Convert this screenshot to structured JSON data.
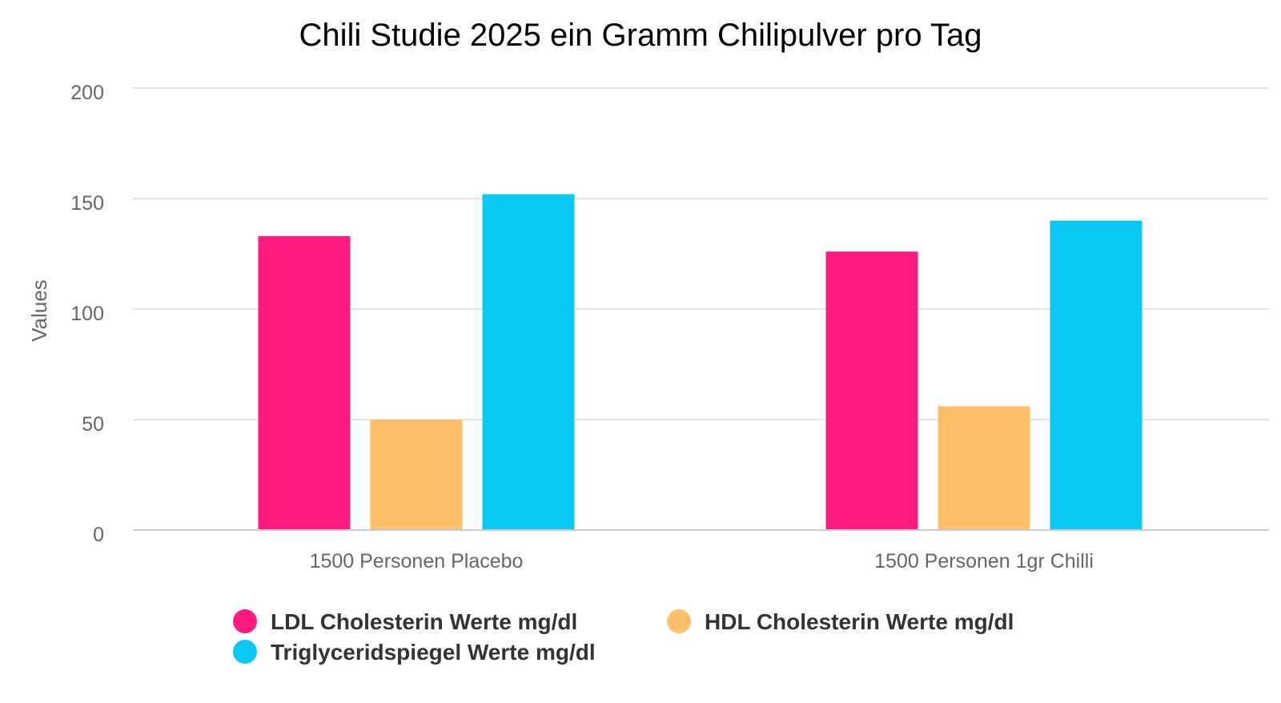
{
  "chart_data": {
    "type": "bar",
    "title": "Chili Studie 2025 ein Gramm Chilipulver pro Tag",
    "xlabel": "",
    "ylabel": "Values",
    "ylim": [
      0,
      200
    ],
    "yticks": [
      "0",
      "50",
      "100",
      "150",
      "200"
    ],
    "grid": true,
    "legend_position": "bottom",
    "categories": [
      "1500 Personen Placebo",
      "1500 Personen 1gr Chilli"
    ],
    "series": [
      {
        "name": "LDL Cholesterin Werte mg/dl",
        "color": "#ff1a7d",
        "values": [
          133,
          126
        ]
      },
      {
        "name": "HDL Cholesterin Werte mg/dl",
        "color": "#ffbf69",
        "values": [
          50,
          56
        ]
      },
      {
        "name": "Triglyceridspiegel Werte mg/dl",
        "color": "#0bc9f2",
        "values": [
          152,
          140
        ]
      }
    ]
  }
}
